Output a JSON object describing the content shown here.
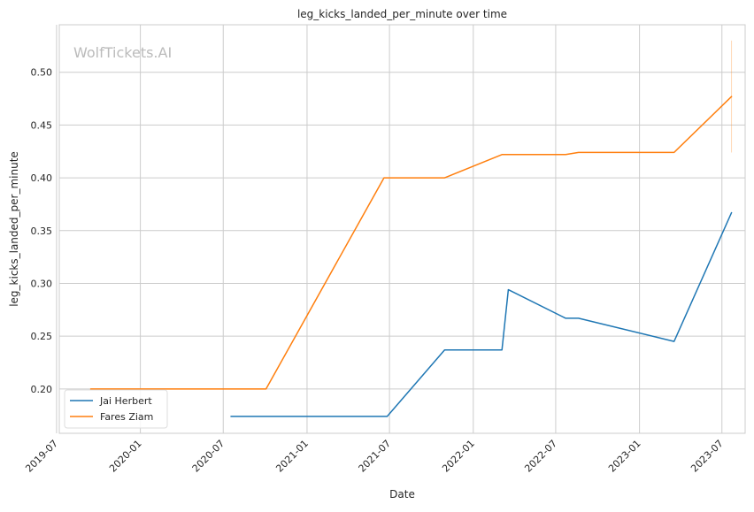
{
  "chart_data": {
    "type": "line",
    "title": "leg_kicks_landed_per_minute over time",
    "xlabel": "Date",
    "ylabel": "leg_kicks_landed_per_minute",
    "watermark": "WolfTickets.AI",
    "x_range": [
      "2019-07-07",
      "2023-08-21"
    ],
    "ylim": [
      0.158,
      0.545
    ],
    "x_ticks": [
      "2019-07",
      "2020-01",
      "2020-07",
      "2021-01",
      "2021-07",
      "2022-01",
      "2022-07",
      "2023-01",
      "2023-07"
    ],
    "y_ticks": [
      0.2,
      0.25,
      0.3,
      0.35,
      0.4,
      0.45,
      0.5
    ],
    "grid": true,
    "legend_position": "lower-left",
    "series": [
      {
        "name": "Jai Herbert",
        "color": "#1f77b4",
        "points": [
          {
            "x": "2020-07-18",
            "y": 0.174
          },
          {
            "x": "2021-06-26",
            "y": 0.174
          },
          {
            "x": "2021-10-30",
            "y": 0.237
          },
          {
            "x": "2022-03-05",
            "y": 0.237
          },
          {
            "x": "2022-03-19",
            "y": 0.294
          },
          {
            "x": "2022-07-23",
            "y": 0.267
          },
          {
            "x": "2022-08-20",
            "y": 0.267
          },
          {
            "x": "2023-03-18",
            "y": 0.245
          },
          {
            "x": "2023-07-22",
            "y": 0.367
          }
        ]
      },
      {
        "name": "Fares Ziam",
        "color": "#ff7f0e",
        "points": [
          {
            "x": "2019-09-14",
            "y": 0.2
          },
          {
            "x": "2020-10-03",
            "y": 0.2
          },
          {
            "x": "2021-06-19",
            "y": 0.4
          },
          {
            "x": "2021-10-30",
            "y": 0.4
          },
          {
            "x": "2022-03-05",
            "y": 0.422
          },
          {
            "x": "2022-07-23",
            "y": 0.422
          },
          {
            "x": "2022-08-20",
            "y": 0.424
          },
          {
            "x": "2023-03-18",
            "y": 0.424
          },
          {
            "x": "2023-07-22",
            "y": 0.477
          }
        ],
        "error_band": {
          "x": "2023-07-22",
          "low": 0.424,
          "high": 0.53
        }
      }
    ]
  }
}
